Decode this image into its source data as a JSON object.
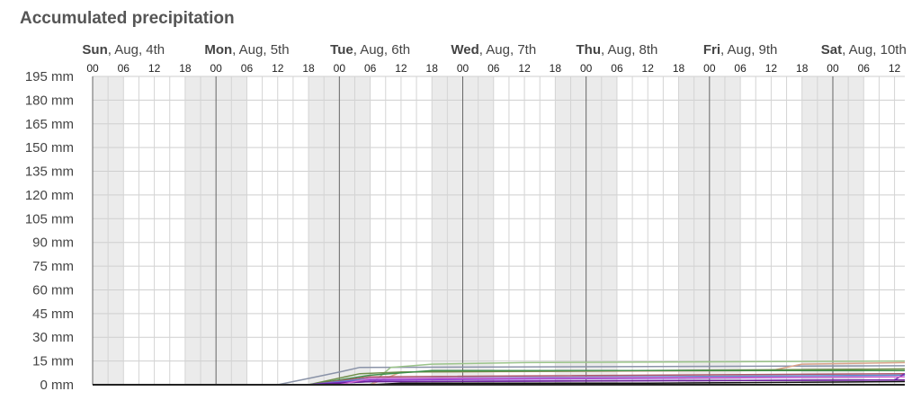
{
  "chart_data": {
    "type": "line",
    "title": "Accumulated precipitation",
    "y_unit": "mm",
    "ylim": [
      0,
      195
    ],
    "y_ticks": [
      0,
      15,
      30,
      45,
      60,
      75,
      90,
      105,
      120,
      135,
      150,
      165,
      180,
      195
    ],
    "y_tick_labels": [
      "0 mm",
      "15 mm",
      "30 mm",
      "45 mm",
      "60 mm",
      "75 mm",
      "90 mm",
      "105 mm",
      "120 mm",
      "135 mm",
      "150 mm",
      "165 mm",
      "180 mm",
      "195 mm"
    ],
    "x_unit": "hours",
    "xlim": [
      "2024-08-04T00:00",
      "2024-08-10T14:00"
    ],
    "days": [
      {
        "name": "Sun",
        "date": ", Aug, 4th"
      },
      {
        "name": "Mon",
        "date": ", Aug, 5th"
      },
      {
        "name": "Tue",
        "date": ", Aug, 6th"
      },
      {
        "name": "Wed",
        "date": ", Aug, 7th"
      },
      {
        "name": "Thu",
        "date": ", Aug, 8th"
      },
      {
        "name": "Fri",
        "date": ", Aug, 9th"
      },
      {
        "name": "Sat",
        "date": ", Aug, 10th"
      }
    ],
    "hour_labels": [
      "00",
      "06",
      "12",
      "18"
    ],
    "grid": true,
    "night_shading": true,
    "legend": "none",
    "series": [
      {
        "color": "#8a93a8",
        "x": [
          "2024-08-04T00:00",
          "2024-08-05T12:00",
          "2024-08-05T18:00",
          "2024-08-06T00:00",
          "2024-08-06T04:00",
          "2024-08-10T14:00"
        ],
        "values": [
          0,
          0,
          4,
          8,
          11,
          12
        ]
      },
      {
        "color": "#9bc48a",
        "x": [
          "2024-08-04T00:00",
          "2024-08-06T06:00",
          "2024-08-06T10:00",
          "2024-08-06T18:00",
          "2024-08-07T12:00",
          "2024-08-10T14:00"
        ],
        "values": [
          0,
          0,
          11,
          13,
          14,
          15
        ]
      },
      {
        "color": "#d9a38a",
        "x": [
          "2024-08-04T00:00",
          "2024-08-06T06:00",
          "2024-08-06T12:00",
          "2024-08-09T12:00",
          "2024-08-09T18:00",
          "2024-08-10T14:00"
        ],
        "values": [
          0,
          0,
          8,
          9,
          13,
          14
        ]
      },
      {
        "color": "#6f8f4a",
        "x": [
          "2024-08-04T00:00",
          "2024-08-05T18:00",
          "2024-08-06T04:00",
          "2024-08-06T12:00",
          "2024-08-10T14:00"
        ],
        "values": [
          0,
          0,
          7,
          8,
          10
        ]
      },
      {
        "color": "#3f8f4a",
        "x": [
          "2024-08-04T00:00",
          "2024-08-05T18:00",
          "2024-08-06T06:00",
          "2024-08-06T18:00",
          "2024-08-10T14:00"
        ],
        "values": [
          0,
          0,
          6,
          9,
          9
        ]
      },
      {
        "color": "#b0556a",
        "x": [
          "2024-08-04T00:00",
          "2024-08-05T18:00",
          "2024-08-06T06:00",
          "2024-08-10T14:00"
        ],
        "values": [
          0,
          0,
          5,
          7
        ]
      },
      {
        "color": "#5a8fd0",
        "x": [
          "2024-08-04T00:00",
          "2024-08-05T18:00",
          "2024-08-06T06:00",
          "2024-08-10T14:00"
        ],
        "values": [
          0,
          0,
          4,
          6
        ]
      },
      {
        "color": "#8a3fd0",
        "x": [
          "2024-08-04T00:00",
          "2024-08-05T18:00",
          "2024-08-06T06:00",
          "2024-08-10T14:00"
        ],
        "values": [
          0,
          0,
          3,
          5
        ]
      },
      {
        "color": "#7a2fb0",
        "x": [
          "2024-08-04T00:00",
          "2024-08-05T18:00",
          "2024-08-06T06:00",
          "2024-08-10T12:00",
          "2024-08-10T14:00"
        ],
        "values": [
          0,
          0,
          2,
          3,
          7
        ]
      },
      {
        "color": "#6a1f9a",
        "x": [
          "2024-08-04T00:00",
          "2024-08-05T18:00",
          "2024-08-06T06:00",
          "2024-08-10T14:00"
        ],
        "values": [
          0,
          0,
          2,
          3
        ]
      },
      {
        "color": "#d06ad0",
        "x": [
          "2024-08-04T00:00",
          "2024-08-06T00:00",
          "2024-08-06T06:00",
          "2024-08-10T14:00"
        ],
        "values": [
          0,
          0,
          4,
          5
        ]
      },
      {
        "color": "#111111",
        "x": [
          "2024-08-04T00:00",
          "2024-08-06T06:00",
          "2024-08-06T12:00",
          "2024-08-08T12:00",
          "2024-08-10T14:00"
        ],
        "values": [
          0,
          0,
          1,
          1,
          2
        ]
      }
    ]
  }
}
